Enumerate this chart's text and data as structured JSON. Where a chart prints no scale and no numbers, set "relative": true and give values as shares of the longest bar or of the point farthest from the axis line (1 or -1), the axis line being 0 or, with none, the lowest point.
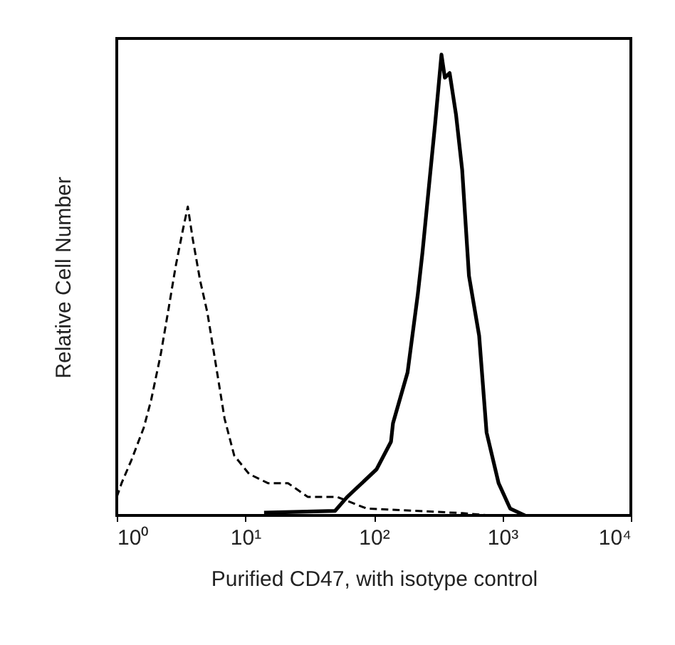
{
  "chart_data": {
    "type": "line",
    "xlabel": "Purified CD47, with isotype control",
    "ylabel": "Relative Cell Number",
    "relative": true,
    "log": "x",
    "xlim": [
      1,
      10000
    ],
    "xticks": [
      {
        "value": 1,
        "label": "10⁰"
      },
      {
        "value": 10,
        "label": "10¹"
      },
      {
        "value": 100,
        "label": "10²"
      },
      {
        "value": 1000,
        "label": "10³"
      },
      {
        "value": 10000,
        "label": "10⁴"
      }
    ],
    "grid": false,
    "marker": "none",
    "series": [
      {
        "color": "#000000",
        "line_style": "dashed",
        "x": [
          1.0,
          1.09,
          1.3,
          1.62,
          1.85,
          2.2,
          2.5,
          2.87,
          3.27,
          3.57,
          3.9,
          4.45,
          5.07,
          5.8,
          6.9,
          8.2,
          10.7,
          15,
          21.5,
          30.7,
          52,
          88,
          490,
          800
        ],
        "values": [
          0.04,
          0.07,
          0.12,
          0.19,
          0.25,
          0.35,
          0.44,
          0.54,
          0.62,
          0.67,
          0.6,
          0.51,
          0.44,
          0.34,
          0.21,
          0.13,
          0.09,
          0.07,
          0.07,
          0.04,
          0.04,
          0.015,
          0.005,
          0
        ]
      },
      {
        "color": "#000000",
        "line_style": "solid",
        "x": [
          14,
          50,
          62,
          105,
          136,
          141,
          183,
          220,
          239,
          272,
          300,
          336,
          357,
          389,
          436,
          487,
          550,
          660,
          754,
          935,
          1150,
          1500
        ],
        "values": [
          0.006,
          0.01,
          0.04,
          0.1,
          0.16,
          0.2,
          0.31,
          0.48,
          0.57,
          0.73,
          0.85,
          1,
          0.95,
          0.96,
          0.87,
          0.75,
          0.52,
          0.39,
          0.18,
          0.07,
          0.015,
          0
        ]
      }
    ]
  }
}
